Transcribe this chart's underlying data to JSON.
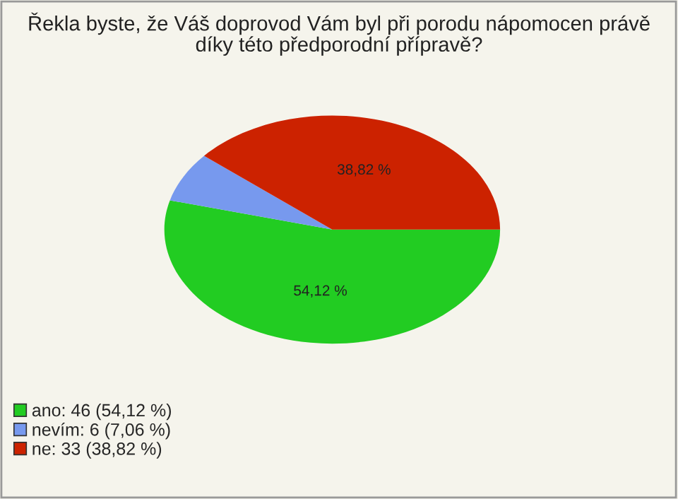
{
  "chart_data": {
    "type": "pie",
    "title": "Řekla byste, že Váš doprovod Vám byl při porodu nápomocen právě\ndíky této předporodní přípravě?",
    "categories": [
      "ano: 46 (54,12 %)",
      "nevím: 6 (7,06 %)",
      "ne: 33 (38,82 %)"
    ],
    "values": [
      54.12,
      7.06,
      38.82
    ],
    "colors": [
      "#22cc22",
      "#7799ee",
      "#cc2200"
    ],
    "value_labels": [
      "54,12 %",
      null,
      "38,82 %"
    ],
    "legend": "bottom left"
  }
}
